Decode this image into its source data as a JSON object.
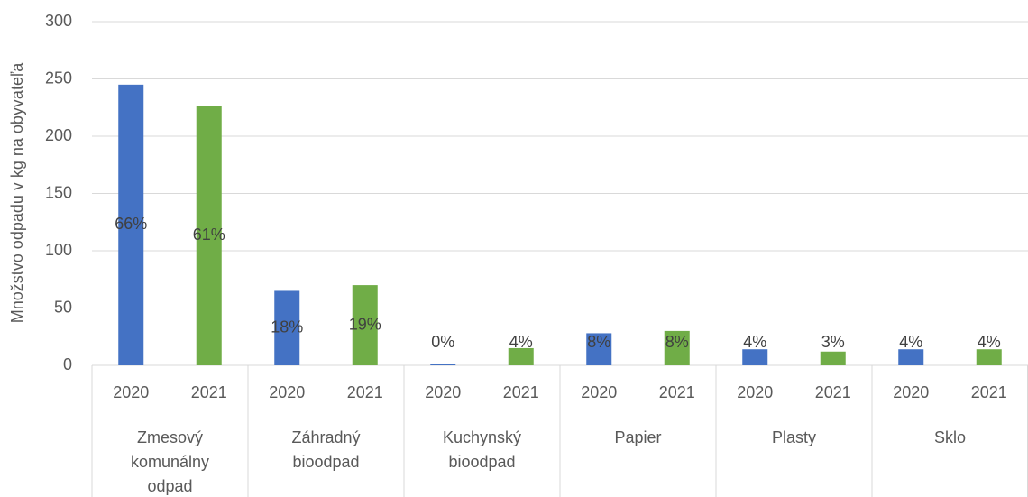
{
  "chart_data": {
    "type": "bar",
    "y_axis_label": "Množstvo odpadu v kg na obyvateľa",
    "categories": [
      [
        "Zmesový",
        "komunálny",
        "odpad"
      ],
      [
        "Záhradný",
        "bioodpad"
      ],
      [
        "Kuchynský",
        "bioodpad"
      ],
      [
        "Papier"
      ],
      [
        "Plasty"
      ],
      [
        "Sklo"
      ]
    ],
    "series": [
      {
        "name": "2020",
        "color": "#4472c4",
        "values": [
          245,
          65,
          1,
          28,
          14,
          14
        ],
        "data_labels": [
          "66%",
          "18%",
          "0%",
          "8%",
          "4%",
          "4%"
        ]
      },
      {
        "name": "2021",
        "color": "#70ad47",
        "values": [
          226,
          70,
          15,
          30,
          12,
          14
        ],
        "data_labels": [
          "61%",
          "19%",
          "4%",
          "8%",
          "3%",
          "4%"
        ]
      }
    ],
    "ylim": [
      0,
      300
    ],
    "yticks": [
      0,
      50,
      100,
      150,
      200,
      250,
      300
    ],
    "grid": true
  }
}
